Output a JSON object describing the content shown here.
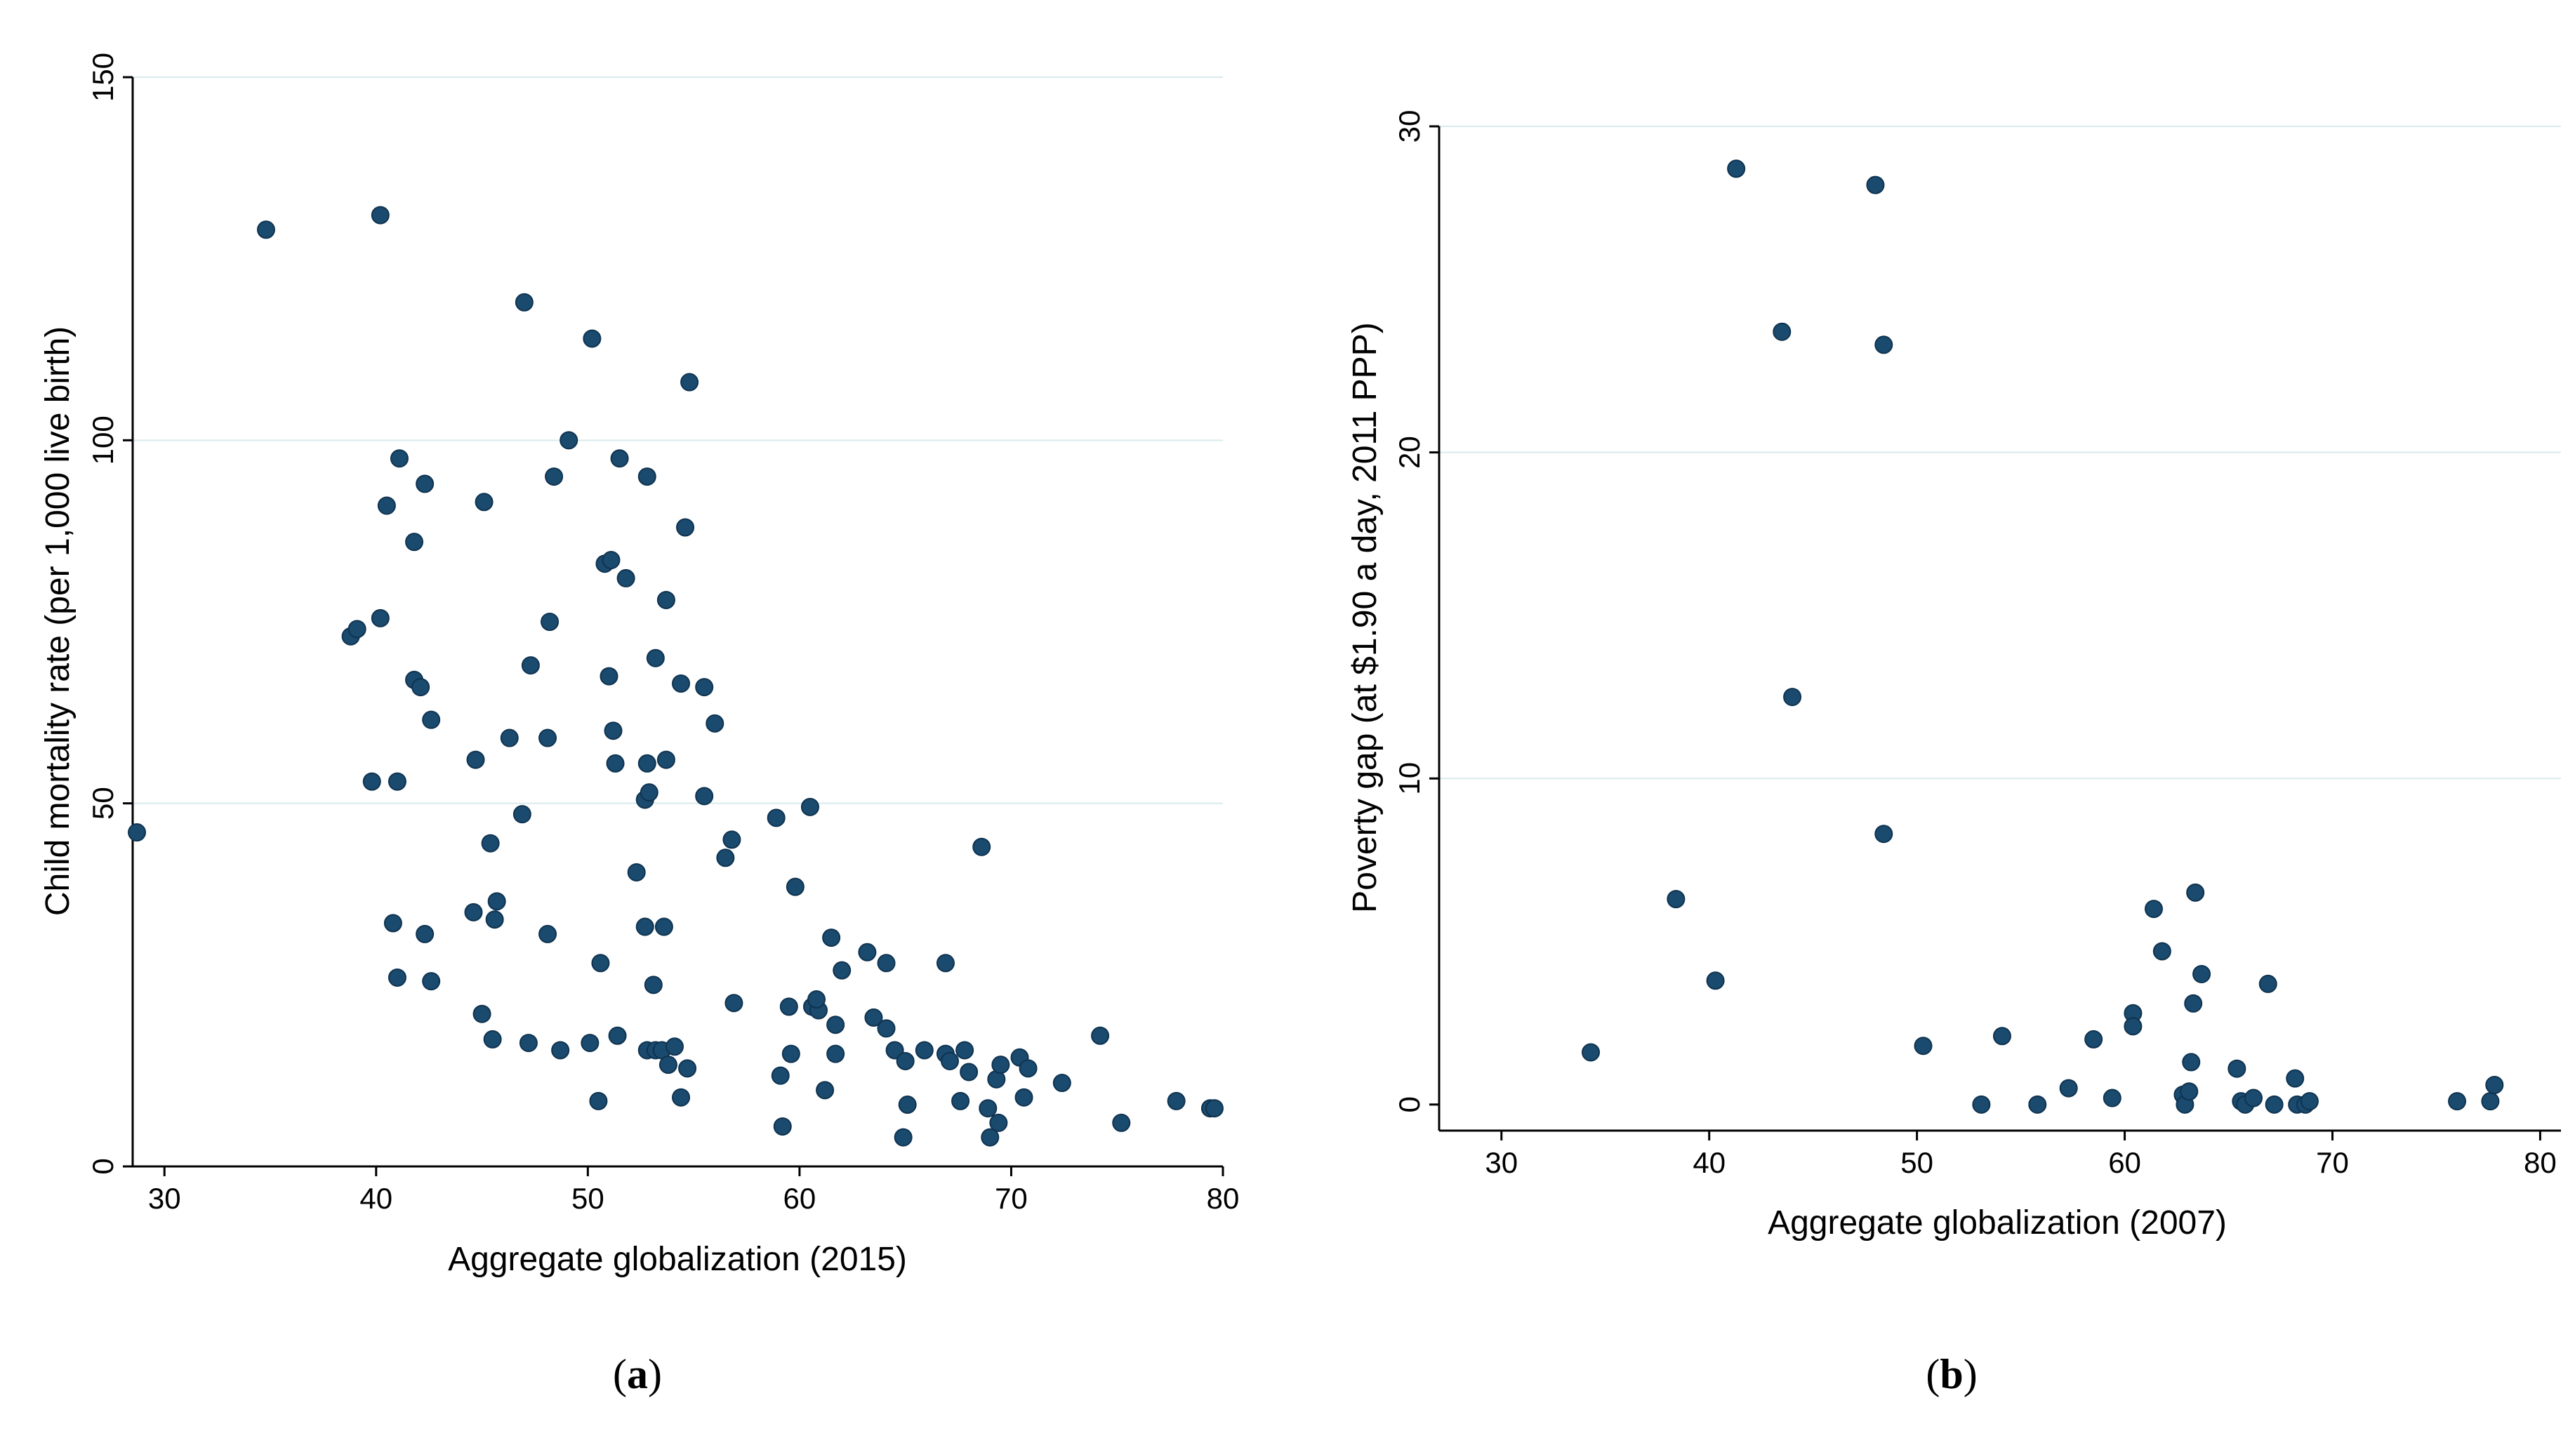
{
  "chart_data": [
    {
      "type": "scatter",
      "panel_label": "(a)",
      "panel_letter": "a",
      "xlabel": "Aggregate globalization (2015)",
      "ylabel": "Child mortality rate (per 1,000 live birth)",
      "xlim": [
        28.5,
        80
      ],
      "ylim": [
        0,
        150
      ],
      "xticks": [
        "30",
        "40",
        "50",
        "60",
        "70",
        "80"
      ],
      "yticks": [
        "0",
        "50",
        "100",
        "150"
      ],
      "grid": true,
      "marker_color": "#1a4a6e",
      "points": [
        [
          28.7,
          46
        ],
        [
          34.8,
          129
        ],
        [
          40.2,
          131
        ],
        [
          47,
          119
        ],
        [
          50.2,
          114
        ],
        [
          54.8,
          108
        ],
        [
          41.1,
          97.5
        ],
        [
          49.1,
          100
        ],
        [
          51.5,
          97.5
        ],
        [
          40.5,
          91
        ],
        [
          42.3,
          94
        ],
        [
          45.1,
          91.5
        ],
        [
          48.4,
          95
        ],
        [
          52.8,
          95
        ],
        [
          41.8,
          86
        ],
        [
          54.6,
          88
        ],
        [
          50.8,
          83
        ],
        [
          51.1,
          83.5
        ],
        [
          51.8,
          81
        ],
        [
          38.8,
          73
        ],
        [
          39.1,
          74
        ],
        [
          40.2,
          75.5
        ],
        [
          48.2,
          75
        ],
        [
          53.7,
          78
        ],
        [
          41.8,
          67
        ],
        [
          42.1,
          66
        ],
        [
          42.6,
          61.5
        ],
        [
          47.3,
          69
        ],
        [
          51,
          67.5
        ],
        [
          53.2,
          70
        ],
        [
          54.4,
          66.5
        ],
        [
          55.5,
          66
        ],
        [
          56,
          61
        ],
        [
          46.3,
          59
        ],
        [
          48.1,
          59
        ],
        [
          51.2,
          60
        ],
        [
          39.8,
          53
        ],
        [
          41,
          53
        ],
        [
          44.7,
          56
        ],
        [
          51.3,
          55.5
        ],
        [
          52.7,
          50.5
        ],
        [
          52.9,
          51.5
        ],
        [
          52.8,
          55.5
        ],
        [
          53.7,
          56
        ],
        [
          55.5,
          51
        ],
        [
          58.9,
          48
        ],
        [
          60.5,
          49.5
        ],
        [
          46.9,
          48.5
        ],
        [
          45.4,
          44.5
        ],
        [
          52.3,
          40.5
        ],
        [
          56.8,
          45
        ],
        [
          56.5,
          42.5
        ],
        [
          59.8,
          38.5
        ],
        [
          68.6,
          44
        ],
        [
          40.8,
          33.5
        ],
        [
          44.6,
          35
        ],
        [
          45.7,
          36.5
        ],
        [
          45.6,
          34
        ],
        [
          42.3,
          32
        ],
        [
          48.1,
          32
        ],
        [
          52.7,
          33
        ],
        [
          53.6,
          33
        ],
        [
          61.5,
          31.5
        ],
        [
          62,
          27
        ],
        [
          63.2,
          29.5
        ],
        [
          64.1,
          28
        ],
        [
          66.9,
          28
        ],
        [
          41,
          26
        ],
        [
          42.6,
          25.5
        ],
        [
          50.6,
          28
        ],
        [
          53.1,
          25
        ],
        [
          45,
          21
        ],
        [
          45.5,
          17.5
        ],
        [
          47.2,
          17
        ],
        [
          48.7,
          16
        ],
        [
          50.1,
          17
        ],
        [
          51.4,
          18
        ],
        [
          52.8,
          16
        ],
        [
          53.2,
          16
        ],
        [
          53.5,
          16
        ],
        [
          53.8,
          14
        ],
        [
          54.1,
          16.5
        ],
        [
          54.7,
          13.5
        ],
        [
          56.9,
          22.5
        ],
        [
          59.5,
          22
        ],
        [
          60.6,
          22
        ],
        [
          60.9,
          21.5
        ],
        [
          60.8,
          23
        ],
        [
          61.7,
          19.5
        ],
        [
          63.5,
          20.5
        ],
        [
          64.1,
          19
        ],
        [
          64.5,
          16
        ],
        [
          65,
          14.5
        ],
        [
          65.9,
          16
        ],
        [
          66.9,
          15.5
        ],
        [
          67.1,
          14.5
        ],
        [
          67.8,
          16
        ],
        [
          68,
          13
        ],
        [
          69.3,
          12
        ],
        [
          69.5,
          14
        ],
        [
          70.4,
          15
        ],
        [
          70.8,
          13.5
        ],
        [
          72.4,
          11.5
        ],
        [
          74.2,
          18
        ],
        [
          50.5,
          9
        ],
        [
          54.4,
          9.5
        ],
        [
          59.1,
          12.5
        ],
        [
          59.6,
          15.5
        ],
        [
          61.2,
          10.5
        ],
        [
          61.7,
          15.5
        ],
        [
          65.1,
          8.5
        ],
        [
          67.6,
          9
        ],
        [
          68.9,
          8
        ],
        [
          69.4,
          6
        ],
        [
          70.6,
          9.5
        ],
        [
          75.2,
          6
        ],
        [
          77.8,
          9
        ],
        [
          79.4,
          8
        ],
        [
          79.6,
          8
        ],
        [
          59.2,
          5.5
        ],
        [
          64.9,
          4
        ],
        [
          69,
          4
        ]
      ]
    },
    {
      "type": "scatter",
      "panel_label": "(b)",
      "panel_letter": "b",
      "xlabel": "Aggregate globalization (2007)",
      "ylabel": "Poverty gap (at $1.90 a day, 2011 PPP)",
      "xlim": [
        27,
        81
      ],
      "ylim": [
        -0.8,
        30
      ],
      "xticks": [
        "30",
        "40",
        "50",
        "60",
        "70",
        "80"
      ],
      "yticks": [
        "0",
        "10",
        "20",
        "30"
      ],
      "grid": true,
      "marker_color": "#1a4a6e",
      "points": [
        [
          41.3,
          28.7
        ],
        [
          48,
          28.2
        ],
        [
          43.5,
          23.7
        ],
        [
          48.4,
          23.3
        ],
        [
          44,
          12.5
        ],
        [
          48.4,
          8.3
        ],
        [
          34.3,
          1.6
        ],
        [
          38.4,
          6.3
        ],
        [
          40.3,
          3.8
        ],
        [
          50.3,
          1.8
        ],
        [
          53.1,
          0
        ],
        [
          54.1,
          2.1
        ],
        [
          55.8,
          0
        ],
        [
          57.3,
          0.5
        ],
        [
          58.5,
          2
        ],
        [
          59.4,
          0.2
        ],
        [
          60.4,
          2.8
        ],
        [
          60.4,
          2.4
        ],
        [
          61.4,
          6
        ],
        [
          61.8,
          4.7
        ],
        [
          62.8,
          0.3
        ],
        [
          62.9,
          0
        ],
        [
          63.1,
          0.4
        ],
        [
          63.2,
          1.3
        ],
        [
          63.3,
          3.1
        ],
        [
          63.4,
          6.5
        ],
        [
          63.7,
          4
        ],
        [
          65.4,
          1.1
        ],
        [
          65.6,
          0.1
        ],
        [
          65.8,
          0
        ],
        [
          66.2,
          0.2
        ],
        [
          66.9,
          3.7
        ],
        [
          67.2,
          0
        ],
        [
          68.2,
          0.8
        ],
        [
          68.3,
          0
        ],
        [
          68.7,
          0
        ],
        [
          68.9,
          0.1
        ],
        [
          76,
          0.1
        ],
        [
          77.6,
          0.1
        ],
        [
          77.8,
          0.6
        ]
      ]
    }
  ]
}
